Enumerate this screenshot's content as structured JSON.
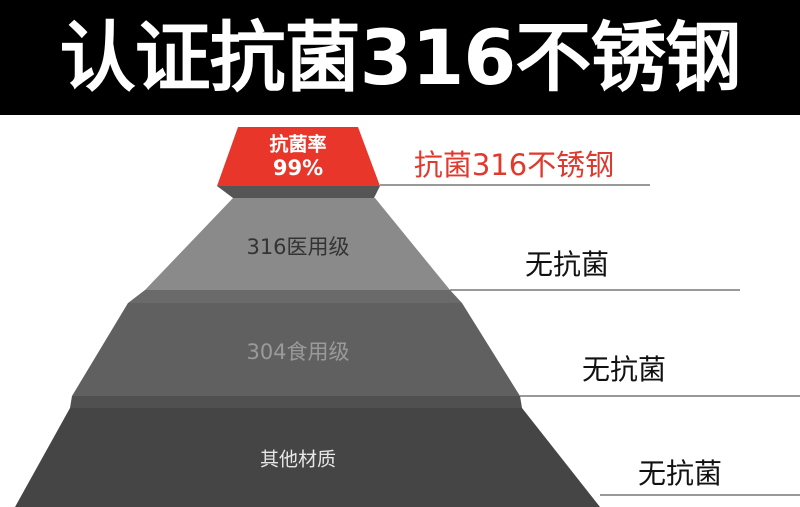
{
  "title": "认证抗菌316不锈钢",
  "pyramid": {
    "top": {
      "line1": "抗菌率",
      "line2": "99%",
      "label": "抗菌316不锈钢",
      "color": "#e8372a"
    },
    "tiers": [
      {
        "name": "316医用级",
        "label": "无抗菌",
        "color": "#8a8a8a"
      },
      {
        "name": "304食用级",
        "label": "无抗菌",
        "color": "#606060"
      },
      {
        "name": "其他材质",
        "label": "无抗菌",
        "color": "#454545"
      }
    ],
    "band_color": "#555555",
    "line_color": "#999999"
  }
}
